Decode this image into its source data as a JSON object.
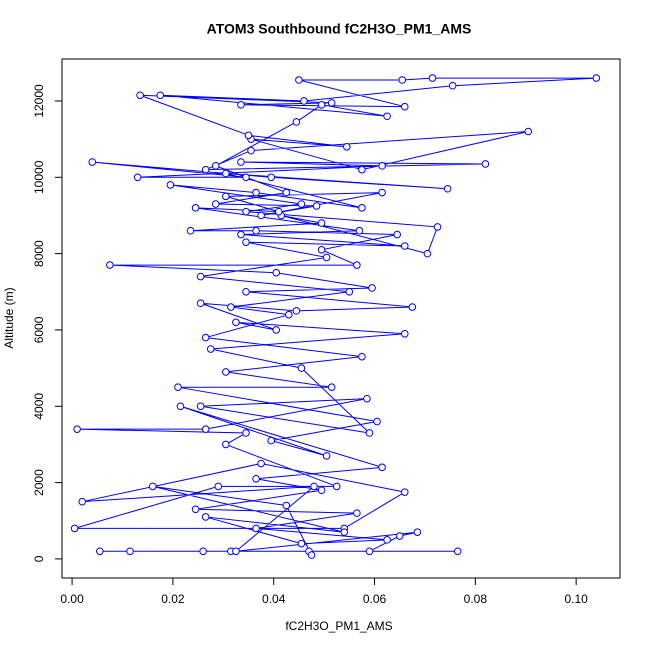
{
  "chart_data": {
    "type": "line",
    "title": "ATOM3 Southbound fC2H3O_PM1_AMS",
    "x_label": "fC2H3O_PM1_AMS",
    "y_label": "Altitude (m)",
    "color": "#0000ff",
    "markers": true,
    "xlim": [
      -0.002,
      0.1087
    ],
    "ylim": [
      -500,
      13100
    ],
    "xticks": [
      {
        "value": 0,
        "label": "0.00"
      },
      {
        "value": 0.02,
        "label": "0.02"
      },
      {
        "value": 0.04,
        "label": "0.04"
      },
      {
        "value": 0.06,
        "label": "0.06"
      },
      {
        "value": 0.08,
        "label": "0.08"
      },
      {
        "value": 0.1,
        "label": "0.10"
      }
    ],
    "yticks": [
      0,
      2000,
      4000,
      6000,
      8000,
      10000,
      12000
    ],
    "x": [
      0.0055,
      0.0765,
      0.0115,
      0.026,
      0.0315,
      0.047,
      0.059,
      0.065,
      0.0685,
      0.0325,
      0.048,
      0.002,
      0.0375,
      0.066,
      0.054,
      0.0005,
      0.029,
      0.0525,
      0.0305,
      0.0345,
      0.001,
      0.0265,
      0.0585,
      0.0255,
      0.059,
      0.0455,
      0.0275,
      0.066,
      0.0325,
      0.0405,
      0.0255,
      0.0445,
      0.0675,
      0.0345,
      0.0595,
      0.0405,
      0.0075,
      0.0565,
      0.0495,
      0.0645,
      0.0365,
      0.0235,
      0.0495,
      0.0415,
      0.0705,
      0.0725,
      0.0345,
      0.0455,
      0.0195,
      0.0365,
      0.0575,
      0.0305,
      0.0745,
      0.0395,
      0.004,
      0.0345,
      0.013,
      0.0615,
      0.0335,
      0.082,
      0.0265,
      0.0355,
      0.0905,
      0.0575,
      0.0355,
      0.0545,
      0.035,
      0.0135,
      0.0515,
      0.0335,
      0.066,
      0.045,
      0.0655,
      0.0715,
      0.104,
      0.0755,
      0.046,
      0.0175,
      0.0625,
      0.0495,
      0.0445,
      0.0285,
      0.0425,
      0.0285,
      0.0485,
      0.0375,
      0.0615,
      0.0305,
      0.041,
      0.0245,
      0.057,
      0.0335,
      0.066,
      0.0345,
      0.0505,
      0.0255,
      0.055,
      0.0315,
      0.043,
      0.0265,
      0.0575,
      0.0305,
      0.0515,
      0.021,
      0.0605,
      0.0395,
      0.0505,
      0.0215,
      0.0615,
      0.0365,
      0.0495,
      0.0245,
      0.0565,
      0.0365,
      0.0625,
      0.0455,
      0.0265,
      0.054,
      0.016,
      0.0425,
      0.0475
    ],
    "values": [
      200,
      200,
      200,
      200,
      200,
      200,
      200,
      600,
      700,
      200,
      1900,
      1500,
      2500,
      1750,
      800,
      800,
      1900,
      1900,
      3000,
      3300,
      3400,
      3400,
      4200,
      4000,
      3300,
      5000,
      5500,
      5900,
      6200,
      6000,
      6700,
      6500,
      6600,
      7000,
      7100,
      7500,
      7700,
      7700,
      8100,
      8500,
      8600,
      8600,
      8800,
      9000,
      8000,
      8700,
      9100,
      9300,
      9800,
      9600,
      9200,
      10100,
      9700,
      10000,
      10400,
      10000,
      10000,
      10300,
      10400,
      10350,
      10200,
      10700,
      11200,
      10200,
      11000,
      10800,
      11100,
      12150,
      11950,
      11900,
      11850,
      12550,
      12550,
      12600,
      12600,
      12400,
      12000,
      12150,
      11600,
      11900,
      11450,
      10300,
      9600,
      9300,
      9250,
      9000,
      9600,
      9500,
      9100,
      9200,
      8600,
      8500,
      8200,
      8300,
      7900,
      7400,
      7000,
      6600,
      6400,
      5800,
      5300,
      4900,
      4500,
      4500,
      3600,
      3100,
      2700,
      4000,
      2400,
      2100,
      1800,
      1300,
      1200,
      800,
      500,
      400,
      1100,
      700,
      1900,
      1400,
      100
    ]
  }
}
